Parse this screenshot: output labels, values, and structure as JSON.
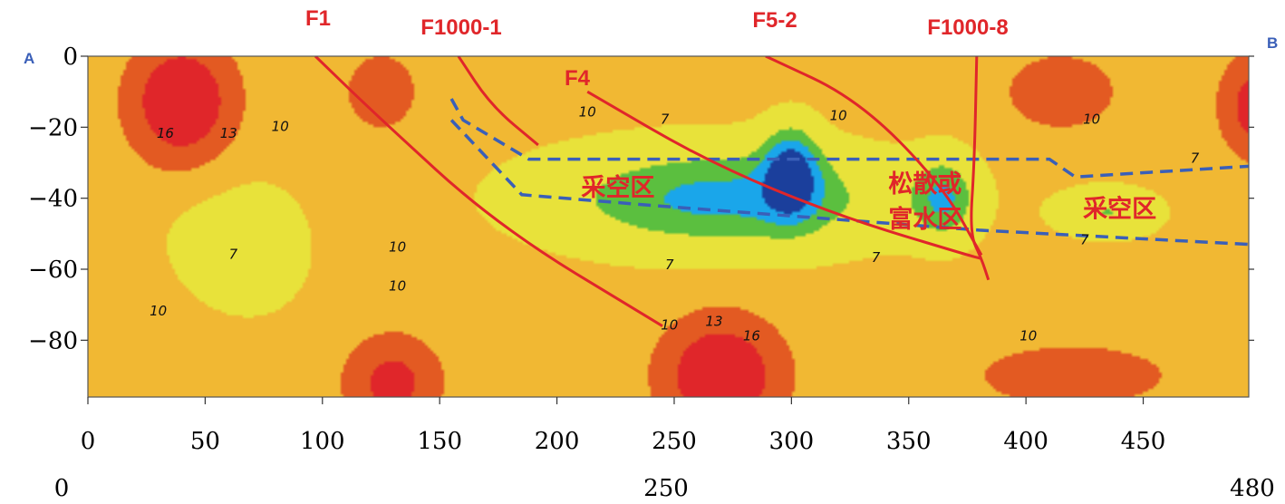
{
  "chart_data": {
    "type": "heatmap",
    "title": "",
    "xlabel": "",
    "ylabel": "",
    "xlim": [
      0,
      495
    ],
    "ylim": [
      -96,
      0
    ],
    "x_ticks": [
      "0",
      "50",
      "100",
      "150",
      "200",
      "250",
      "300",
      "350",
      "400",
      "450"
    ],
    "y_ticks": [
      "0",
      "−20",
      "−40",
      "−60",
      "−80"
    ],
    "bottom_scale": [
      "0",
      "250",
      "480"
    ],
    "section_ends": {
      "start": "A",
      "end": "B"
    },
    "contour_levels": [
      "7",
      "10",
      "13",
      "16"
    ],
    "colors": {
      "low": "#1b3f9c",
      "low2": "#1aa6ea",
      "mid_low": "#5bbf3f",
      "mid": "#e8e23a",
      "mid_high": "#f1b833",
      "high": "#e35a22",
      "peak": "#e0262a",
      "fault": "#e0262a",
      "zone_boundary": "#3a5fb8"
    },
    "faults": [
      {
        "name": "F1",
        "points": [
          [
            97,
            0
          ],
          [
            122,
            -16
          ],
          [
            175,
            -48
          ],
          [
            245,
            -76
          ]
        ]
      },
      {
        "name": "F1000-1",
        "points": [
          [
            158,
            0
          ],
          [
            172,
            -14
          ],
          [
            192,
            -25
          ]
        ]
      },
      {
        "name": "F4",
        "points": [
          [
            213,
            -10
          ],
          [
            265,
            -30
          ],
          [
            320,
            -45
          ],
          [
            375,
            -56
          ],
          [
            381,
            -57
          ]
        ]
      },
      {
        "name": "F5-2",
        "points": [
          [
            289,
            0
          ],
          [
            328,
            -12
          ],
          [
            364,
            -36
          ],
          [
            381,
            -56
          ]
        ]
      },
      {
        "name": "F1000-8",
        "points": [
          [
            379,
            0
          ],
          [
            378,
            -30
          ],
          [
            376,
            -50
          ],
          [
            381,
            -57
          ],
          [
            384,
            -63
          ]
        ]
      }
    ],
    "zones": [
      {
        "label": "采空区",
        "x": 226,
        "y": -37
      },
      {
        "label": "松散或",
        "x": 357,
        "y": -36
      },
      {
        "label": "富水区",
        "x": 357,
        "y": -46
      },
      {
        "label": "采空区",
        "x": 440,
        "y": -43
      }
    ],
    "zone_boundary": {
      "top": [
        [
          155,
          -12
        ],
        [
          160,
          -18
        ],
        [
          188,
          -29
        ],
        [
          410,
          -29
        ],
        [
          421,
          -34
        ],
        [
          495,
          -31
        ]
      ],
      "bottom": [
        [
          155,
          -18
        ],
        [
          185,
          -39
        ],
        [
          240,
          -42
        ],
        [
          380,
          -49
        ],
        [
          495,
          -53
        ]
      ]
    },
    "contour_label_marks": [
      {
        "text": "16",
        "x": 33,
        "y": -23
      },
      {
        "text": "13",
        "x": 60,
        "y": -23
      },
      {
        "text": "10",
        "x": 82,
        "y": -21
      },
      {
        "text": "10",
        "x": 213,
        "y": -17
      },
      {
        "text": "7",
        "x": 246,
        "y": -19
      },
      {
        "text": "10",
        "x": 320,
        "y": -18
      },
      {
        "text": "10",
        "x": 428,
        "y": -19
      },
      {
        "text": "7",
        "x": 472,
        "y": -30
      },
      {
        "text": "7",
        "x": 62,
        "y": -57
      },
      {
        "text": "10",
        "x": 132,
        "y": -55
      },
      {
        "text": "10",
        "x": 132,
        "y": -66
      },
      {
        "text": "10",
        "x": 30,
        "y": -73
      },
      {
        "text": "7",
        "x": 248,
        "y": -60
      },
      {
        "text": "7",
        "x": 336,
        "y": -58
      },
      {
        "text": "7",
        "x": 425,
        "y": -53
      },
      {
        "text": "10",
        "x": 248,
        "y": -77
      },
      {
        "text": "13",
        "x": 267,
        "y": -76
      },
      {
        "text": "16",
        "x": 283,
        "y": -80
      },
      {
        "text": "10",
        "x": 401,
        "y": -80
      }
    ],
    "field_blobs": [
      {
        "x": 270,
        "y": -40,
        "rx": 75,
        "ry": 15,
        "value": -5
      },
      {
        "x": 300,
        "y": -32,
        "rx": 12,
        "ry": 13,
        "value": -5
      },
      {
        "x": 365,
        "y": -40,
        "rx": 14,
        "ry": 12,
        "value": -4
      },
      {
        "x": 435,
        "y": -44,
        "rx": 22,
        "ry": 7,
        "value": -3
      },
      {
        "x": 63,
        "y": -55,
        "rx": 32,
        "ry": 22,
        "value": -2
      },
      {
        "x": 40,
        "y": -13,
        "rx": 22,
        "ry": 17,
        "value": 7
      },
      {
        "x": 125,
        "y": -10,
        "rx": 14,
        "ry": 10,
        "value": 4
      },
      {
        "x": 270,
        "y": -90,
        "rx": 25,
        "ry": 16,
        "value": 7
      },
      {
        "x": 130,
        "y": -92,
        "rx": 20,
        "ry": 13,
        "value": 5
      },
      {
        "x": 415,
        "y": -10,
        "rx": 22,
        "ry": 10,
        "value": 4
      },
      {
        "x": 500,
        "y": -14,
        "rx": 16,
        "ry": 14,
        "value": 6
      },
      {
        "x": 420,
        "y": -90,
        "rx": 70,
        "ry": 15,
        "value": 2
      },
      {
        "x": 0,
        "y": -90,
        "rx": 60,
        "ry": 25,
        "value": 1.5
      }
    ]
  }
}
